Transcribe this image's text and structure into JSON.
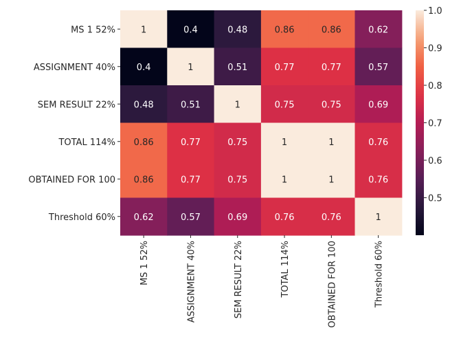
{
  "chart_data": {
    "type": "heatmap",
    "title": "",
    "xlabel": "",
    "ylabel": "",
    "rows": [
      "MS 1 52%",
      "ASSIGNMENT 40%",
      "SEM RESULT 22%",
      "TOTAL 114%",
      "OBTAINED FOR 100",
      "Threshold 60%"
    ],
    "columns": [
      "MS 1 52%",
      "ASSIGNMENT 40%",
      "SEM RESULT 22%",
      "TOTAL 114%",
      "OBTAINED FOR 100",
      "Threshold 60%"
    ],
    "values": [
      [
        1,
        0.4,
        0.48,
        0.86,
        0.86,
        0.62
      ],
      [
        0.4,
        1,
        0.51,
        0.77,
        0.77,
        0.57
      ],
      [
        0.48,
        0.51,
        1,
        0.75,
        0.75,
        0.69
      ],
      [
        0.86,
        0.77,
        0.75,
        1,
        1,
        0.76
      ],
      [
        0.86,
        0.77,
        0.75,
        1,
        1,
        0.76
      ],
      [
        0.62,
        0.57,
        0.69,
        0.76,
        0.76,
        1
      ]
    ],
    "value_labels": [
      [
        "1",
        "0.4",
        "0.48",
        "0.86",
        "0.86",
        "0.62"
      ],
      [
        "0.4",
        "1",
        "0.51",
        "0.77",
        "0.77",
        "0.57"
      ],
      [
        "0.48",
        "0.51",
        "1",
        "0.75",
        "0.75",
        "0.69"
      ],
      [
        "0.86",
        "0.77",
        "0.75",
        "1",
        "1",
        "0.76"
      ],
      [
        "0.86",
        "0.77",
        "0.75",
        "1",
        "1",
        "0.76"
      ],
      [
        "0.62",
        "0.57",
        "0.69",
        "0.76",
        "0.76",
        "1"
      ]
    ],
    "colorbar": {
      "range": [
        0.4,
        1.0
      ],
      "ticks": [
        0.5,
        0.6,
        0.7,
        0.8,
        0.9,
        1.0
      ],
      "tick_labels": [
        "0.5",
        "0.6",
        "0.7",
        "0.8",
        "0.9",
        "1.0"
      ],
      "colormap": "rocket",
      "position": "right"
    },
    "grid": false
  }
}
